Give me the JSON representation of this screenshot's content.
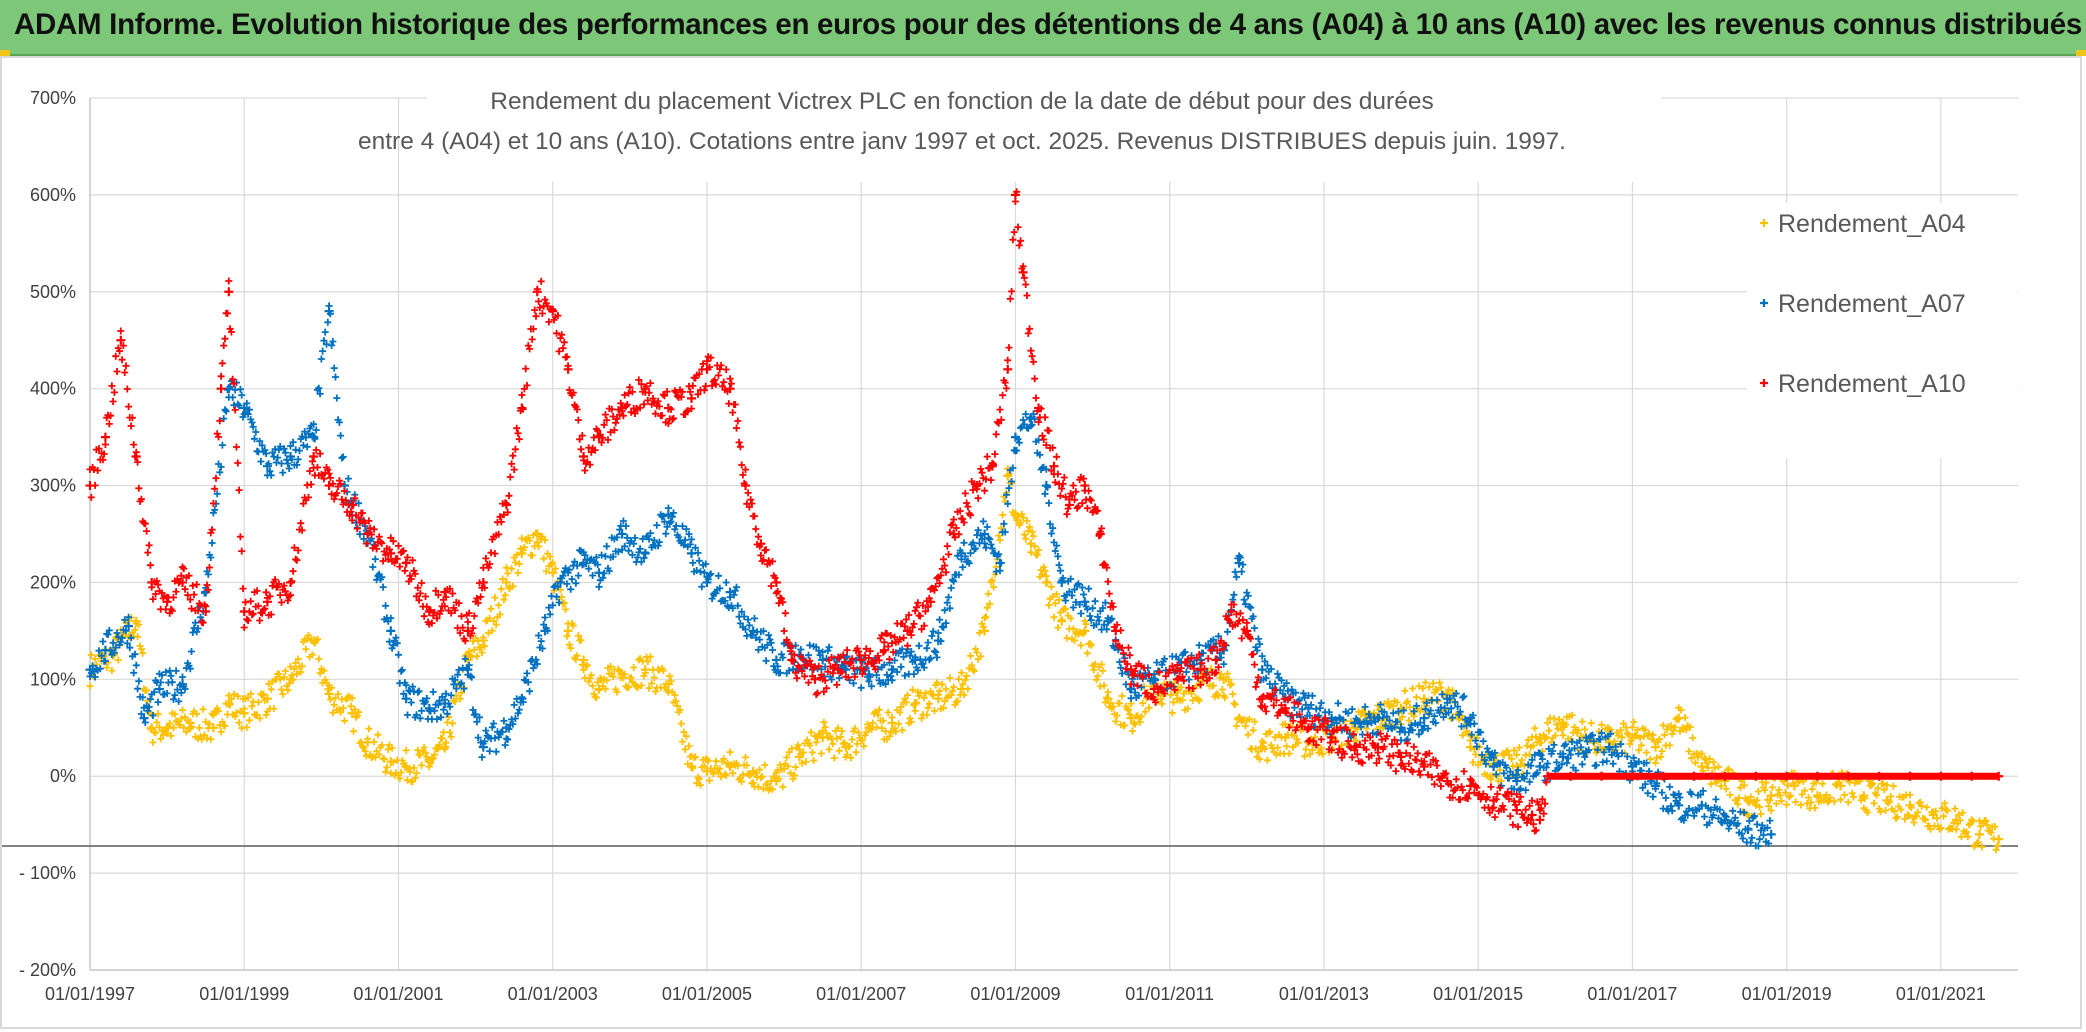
{
  "header": {
    "title": "ADAM Informe. Evolution historique des performances en euros pour des détentions de 4 ans (A04) à 10 ans (A10) avec les revenus connus distribués"
  },
  "chart_data": {
    "type": "scatter",
    "title_line1": "Rendement du placement Victrex PLC en fonction de la date de début pour des durées",
    "title_line2": "entre 4 (A04) et 10 ans (A10). Cotations entre janv 1997 et oct. 2025. Revenus DISTRIBUES depuis juin. 1997.",
    "xlabel": "",
    "ylabel": "",
    "x_range": [
      1997.0,
      2022.0
    ],
    "ylim": [
      -200,
      700
    ],
    "y_ticks": [
      700,
      600,
      500,
      400,
      300,
      200,
      100,
      0,
      -100,
      -200
    ],
    "y_tick_labels": [
      "700%",
      "600%",
      "500%",
      "400%",
      "300%",
      "200%",
      "100%",
      "0%",
      "- 100%",
      "- 200%"
    ],
    "x_ticks": [
      1997,
      1999,
      2001,
      2003,
      2005,
      2007,
      2009,
      2011,
      2013,
      2015,
      2017,
      2019,
      2021
    ],
    "x_tick_labels": [
      "01/01/1997",
      "01/01/1999",
      "01/01/2001",
      "01/01/2003",
      "01/01/2005",
      "01/01/2007",
      "01/01/2009",
      "01/01/2011",
      "01/01/2013",
      "01/01/2015",
      "01/01/2017",
      "01/01/2019",
      "01/01/2021"
    ],
    "grid": true,
    "legend_position": "top-right",
    "series": [
      {
        "name": "Rendement_A04",
        "color": "#ffc000",
        "marker": "plus",
        "x": [
          1997.0,
          1997.3,
          1997.6,
          1997.8,
          1998.0,
          1998.3,
          1998.6,
          1998.8,
          1999.0,
          1999.3,
          1999.6,
          1999.9,
          2000.1,
          2000.4,
          2000.6,
          2000.9,
          2001.1,
          2001.4,
          2001.6,
          2001.9,
          2002.1,
          2002.4,
          2002.6,
          2002.8,
          2003.0,
          2003.2,
          2003.4,
          2003.6,
          2003.9,
          2004.2,
          2004.5,
          2004.8,
          2005.0,
          2005.3,
          2005.6,
          2005.9,
          2006.2,
          2006.5,
          2006.8,
          2007.1,
          2007.4,
          2007.7,
          2008.0,
          2008.3,
          2008.6,
          2008.9,
          2009.0,
          2009.2,
          2009.4,
          2009.6,
          2009.9,
          2010.2,
          2010.5,
          2010.8,
          2011.1,
          2011.4,
          2011.7,
          2011.9,
          2012.2,
          2012.5,
          2012.8,
          2013.1,
          2013.4,
          2013.7,
          2014.0,
          2014.3,
          2014.6,
          2014.9,
          2015.2,
          2015.5,
          2015.8,
          2016.1,
          2016.4,
          2016.7,
          2017.0,
          2017.3,
          2017.6,
          2017.9,
          2018.2,
          2018.5,
          2018.8,
          2019.1,
          2019.4,
          2019.7,
          2020.0,
          2020.3,
          2020.6,
          2020.9,
          2021.2,
          2021.5,
          2021.75
        ],
        "values": [
          110,
          125,
          160,
          50,
          50,
          55,
          50,
          75,
          65,
          80,
          100,
          140,
          85,
          65,
          35,
          15,
          10,
          15,
          30,
          120,
          140,
          200,
          230,
          250,
          210,
          150,
          120,
          90,
          105,
          110,
          95,
          10,
          5,
          10,
          5,
          -5,
          20,
          40,
          30,
          50,
          55,
          75,
          80,
          90,
          150,
          310,
          270,
          240,
          200,
          160,
          150,
          80,
          60,
          90,
          80,
          95,
          100,
          60,
          30,
          40,
          35,
          40,
          50,
          60,
          70,
          80,
          85,
          30,
          10,
          10,
          40,
          55,
          40,
          35,
          40,
          30,
          60,
          10,
          -5,
          -25,
          -20,
          -10,
          -20,
          -10,
          -20,
          -25,
          -30,
          -40,
          -45,
          -60,
          -65
        ]
      },
      {
        "name": "Rendement_A07",
        "color": "#0070c0",
        "marker": "plus",
        "x": [
          1997.0,
          1997.2,
          1997.5,
          1997.7,
          1997.9,
          1998.2,
          1998.5,
          1998.8,
          1999.0,
          1999.3,
          1999.6,
          1999.9,
          2000.1,
          2000.3,
          2000.6,
          2000.9,
          2001.1,
          2001.4,
          2001.6,
          2001.9,
          2002.1,
          2002.4,
          2002.6,
          2002.9,
          2003.1,
          2003.4,
          2003.6,
          2003.9,
          2004.2,
          2004.5,
          2004.8,
          2005.0,
          2005.3,
          2005.6,
          2005.9,
          2006.2,
          2006.5,
          2006.8,
          2007.1,
          2007.4,
          2007.7,
          2008.0,
          2008.3,
          2008.6,
          2008.8,
          2009.0,
          2009.2,
          2009.4,
          2009.6,
          2009.9,
          2010.2,
          2010.5,
          2010.8,
          2011.1,
          2011.4,
          2011.7,
          2011.9,
          2012.2,
          2012.5,
          2012.8,
          2013.1,
          2013.4,
          2013.7,
          2014.0,
          2014.3,
          2014.6,
          2014.9,
          2015.2,
          2015.5,
          2015.8,
          2016.1,
          2016.4,
          2016.7,
          2017.0,
          2017.3,
          2017.6,
          2017.9,
          2018.2,
          2018.5,
          2018.8
        ],
        "values": [
          110,
          130,
          155,
          60,
          90,
          95,
          190,
          400,
          380,
          320,
          330,
          350,
          480,
          300,
          250,
          150,
          80,
          70,
          75,
          110,
          30,
          50,
          80,
          150,
          200,
          220,
          210,
          250,
          230,
          270,
          230,
          200,
          190,
          150,
          120,
          125,
          120,
          110,
          105,
          110,
          120,
          140,
          230,
          250,
          220,
          350,
          370,
          300,
          200,
          180,
          160,
          90,
          100,
          110,
          120,
          130,
          220,
          110,
          80,
          70,
          60,
          55,
          60,
          50,
          60,
          80,
          60,
          10,
          -5,
          10,
          20,
          25,
          30,
          10,
          -10,
          -30,
          -30,
          -45,
          -55,
          -60
        ]
      },
      {
        "name": "Rendement_A10",
        "color": "#ff0000",
        "marker": "plus",
        "x": [
          1997.0,
          1997.2,
          1997.4,
          1997.6,
          1997.8,
          1998.0,
          1998.2,
          1998.5,
          1998.7,
          1998.8,
          1999.0,
          1999.3,
          1999.6,
          1999.9,
          2000.1,
          2000.4,
          2000.6,
          2000.9,
          2001.1,
          2001.4,
          2001.6,
          2001.9,
          2002.1,
          2002.4,
          2002.6,
          2002.8,
          2003.0,
          2003.2,
          2003.4,
          2003.6,
          2003.9,
          2004.2,
          2004.5,
          2004.8,
          2005.0,
          2005.3,
          2005.5,
          2005.7,
          2005.9,
          2006.1,
          2006.4,
          2006.7,
          2007.0,
          2007.3,
          2007.6,
          2007.9,
          2008.2,
          2008.5,
          2008.7,
          2008.9,
          2009.0,
          2009.1,
          2009.3,
          2009.5,
          2009.7,
          2009.9,
          2010.1,
          2010.3,
          2010.5,
          2010.8,
          2011.1,
          2011.4,
          2011.6,
          2011.8,
          2012.0,
          2012.2,
          2012.5,
          2012.8,
          2013.1,
          2013.4,
          2013.7,
          2014.0,
          2014.3,
          2014.6,
          2014.9,
          2015.2,
          2015.5,
          2015.7,
          2015.8,
          2015.9,
          2016.2,
          2016.6,
          2017.0,
          2017.4,
          2017.8,
          2018.2,
          2018.6,
          2019.0,
          2019.4,
          2019.8,
          2020.2,
          2020.6,
          2021.0,
          2021.4,
          2021.75
        ],
        "values": [
          300,
          350,
          450,
          330,
          200,
          180,
          200,
          170,
          400,
          500,
          170,
          180,
          200,
          330,
          300,
          280,
          250,
          230,
          220,
          170,
          190,
          150,
          200,
          280,
          380,
          500,
          480,
          420,
          330,
          350,
          380,
          400,
          380,
          390,
          420,
          400,
          300,
          240,
          200,
          120,
          100,
          110,
          120,
          130,
          150,
          180,
          250,
          300,
          320,
          420,
          600,
          520,
          380,
          320,
          280,
          300,
          250,
          150,
          110,
          90,
          100,
          110,
          120,
          170,
          150,
          80,
          70,
          50,
          40,
          30,
          30,
          20,
          10,
          -5,
          -10,
          -25,
          -35,
          -40,
          -45,
          0,
          0,
          0,
          0,
          0,
          0,
          0,
          0,
          0,
          0,
          0,
          0,
          0,
          0,
          0,
          0
        ]
      }
    ]
  }
}
